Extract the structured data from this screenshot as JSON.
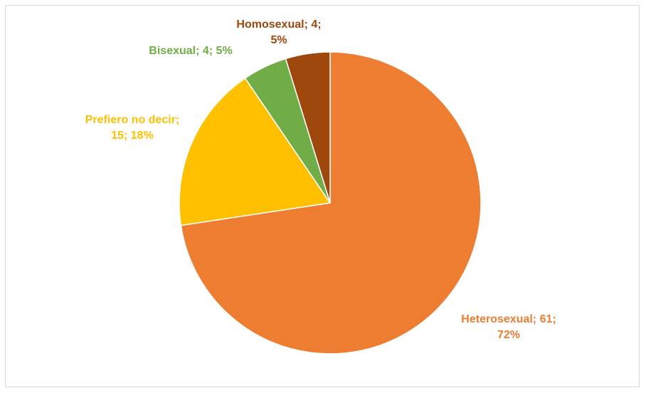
{
  "chart_data": {
    "type": "pie",
    "categories": [
      "Heterosexual",
      "Prefiero no decir",
      "Bisexual",
      "Homosexual"
    ],
    "values": [
      61,
      15,
      4,
      4
    ],
    "value_labels": [
      "Heterosexual; 61; 72%",
      "Prefiero no decir; 15; 18%",
      "Bisexual; 4; 5%",
      "Homosexual; 4; 5%"
    ],
    "colors": [
      "#ED7D31",
      "#FFC000",
      "#70AD47",
      "#9E480E"
    ]
  }
}
